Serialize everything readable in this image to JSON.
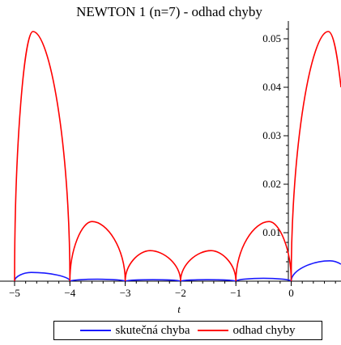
{
  "chart_data": {
    "type": "line",
    "title": "NEWTON 1 (n=7) - odhad chyby",
    "xlabel": "t",
    "ylabel": "",
    "xlim": [
      -5,
      0.9
    ],
    "ylim": [
      0,
      0.053
    ],
    "x_ticks": [
      -5,
      -4,
      -3,
      -2,
      -1,
      0
    ],
    "x_tick_labels": [
      "−5",
      "−4",
      "−3",
      "−2",
      "−1",
      "0"
    ],
    "y_ticks": [
      0.01,
      0.02,
      0.03,
      0.04,
      0.05
    ],
    "y_tick_labels": [
      "0.01",
      "0.02",
      "0.03",
      "0.04",
      "0.05"
    ],
    "nodes": [
      -5,
      -4,
      -3,
      -2,
      -1,
      0
    ],
    "legend_position": "bottom",
    "grid": false,
    "series": [
      {
        "name": "skutečná chyba",
        "color": "#1a1aff",
        "x": [
          -5,
          -4.7,
          -4,
          -3.5,
          -3,
          -2.5,
          -2,
          -1.5,
          -1,
          -0.5,
          0,
          0.7,
          0.9
        ],
        "y": [
          0,
          0.0018,
          0,
          0.0004,
          0,
          0.0003,
          0,
          0.0003,
          0,
          0.0006,
          0,
          0.0042,
          0.0035
        ]
      },
      {
        "name": "odhad chyby",
        "color": "#ff0000",
        "x": [
          -5,
          -4.67,
          -4,
          -3.6,
          -3,
          -2.55,
          -2,
          -1.45,
          -1,
          -0.4,
          0,
          0.67,
          0.9
        ],
        "y": [
          0,
          0.0515,
          0,
          0.0123,
          0,
          0.0063,
          0,
          0.0063,
          0,
          0.0123,
          0,
          0.0515,
          0.04
        ]
      }
    ]
  }
}
